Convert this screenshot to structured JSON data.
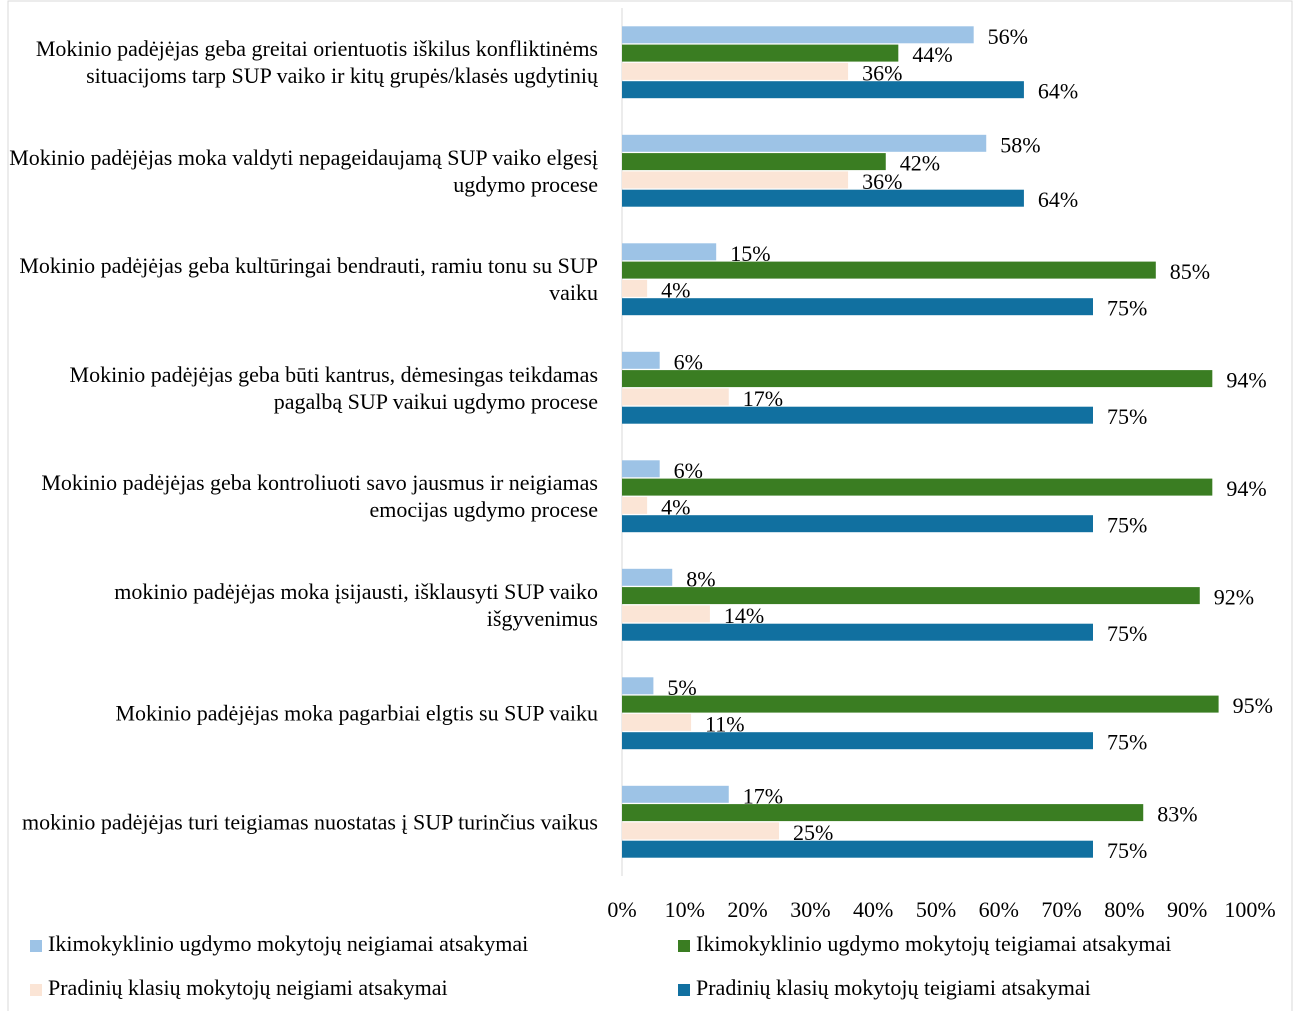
{
  "chart_data": {
    "type": "bar",
    "orientation": "horizontal",
    "categories": [
      "Mokinio padėjėjas geba greitai orientuotis  iškilus konfliktinėms situacijoms tarp SUP vaiko ir kitų grupės/klasės ugdytinių",
      "Mokinio padėjėjas moka valdyti nepageidaujamą SUP vaiko elgesį ugdymo procese",
      "Mokinio padėjėjas geba kultūringai bendrauti, ramiu tonu su SUP vaiku",
      "Mokinio padėjėjas geba būti kantrus, dėmesingas teikdamas pagalbą SUP vaikui ugdymo procese",
      "Mokinio padėjėjas geba kontroliuoti savo jausmus ir neigiamas emocijas ugdymo procese",
      "mokinio padėjėjas moka įsijausti, išklausyti SUP vaiko išgyvenimus",
      "Mokinio padėjėjas moka pagarbiai elgtis su SUP vaiku",
      "mokinio  padėjėjas turi teigiamas nuostatas į SUP turinčius vaikus"
    ],
    "series": [
      {
        "name": "Ikimokyklinio ugdymo mokytojų neigiamai atsakymai",
        "color": "#9dc3e6",
        "values": [
          56,
          58,
          15,
          6,
          6,
          8,
          5,
          17
        ],
        "value_labels": [
          "56%",
          "58%",
          "15%",
          "6%",
          "6%",
          "8%",
          "5%",
          "17%"
        ]
      },
      {
        "name": "Ikimokyklinio ugdymo mokytojų teigiamai atsakymai",
        "color": "#3a7d22",
        "values": [
          44,
          42,
          85,
          94,
          94,
          92,
          95,
          83
        ],
        "value_labels": [
          "44%",
          "42%",
          "85%",
          "94%",
          "94%",
          "92%",
          "95%",
          "83%"
        ]
      },
      {
        "name": "Pradinių klasių mokytojų neigiami atsakymai",
        "color": "#fbe5d6",
        "values": [
          36,
          36,
          4,
          17,
          4,
          14,
          11,
          25
        ],
        "value_labels": [
          "36%",
          "36%",
          "4%",
          "17%",
          "4%",
          "14%",
          "11%",
          "25%"
        ]
      },
      {
        "name": "Pradinių klasių mokytojų teigiami atsakymai",
        "color": "#1170a0",
        "values": [
          64,
          64,
          75,
          75,
          75,
          75,
          75,
          75
        ],
        "value_labels": [
          "64%",
          "64%",
          "75%",
          "75%",
          "75%",
          "75%",
          "75%",
          "75%"
        ]
      }
    ],
    "xlim": [
      0,
      100
    ],
    "xticks": [
      {
        "value": 0,
        "label": "0%"
      },
      {
        "value": 10,
        "label": "10%"
      },
      {
        "value": 20,
        "label": "20%"
      },
      {
        "value": 30,
        "label": "30%"
      },
      {
        "value": 40,
        "label": "40%"
      },
      {
        "value": 50,
        "label": "50%"
      },
      {
        "value": 60,
        "label": "60%"
      },
      {
        "value": 70,
        "label": "70%"
      },
      {
        "value": 80,
        "label": "80%"
      },
      {
        "value": 90,
        "label": "90%"
      },
      {
        "value": 100,
        "label": "100%"
      }
    ],
    "grid": false
  }
}
